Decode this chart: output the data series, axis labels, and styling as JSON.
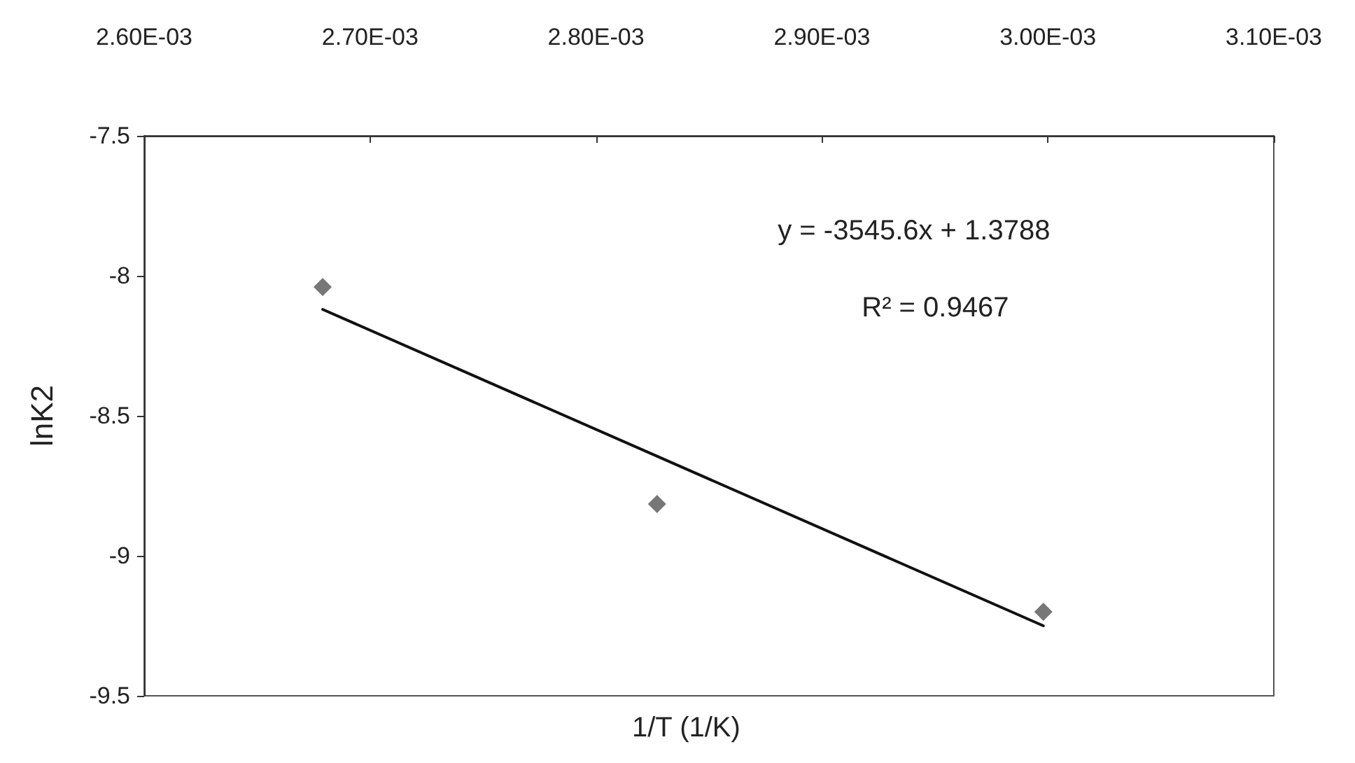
{
  "chart_data": {
    "type": "scatter",
    "xlabel": "1/T (1/K)",
    "ylabel": "lnK2",
    "xlim": [
      0.0026,
      0.0031
    ],
    "xticks": [
      {
        "value": 0.0026,
        "label": "2.60E-03"
      },
      {
        "value": 0.0027,
        "label": "2.70E-03"
      },
      {
        "value": 0.0028,
        "label": "2.80E-03"
      },
      {
        "value": 0.0029,
        "label": "2.90E-03"
      },
      {
        "value": 0.003,
        "label": "3.00E-03"
      },
      {
        "value": 0.0031,
        "label": "3.10E-03"
      }
    ],
    "ylim": [
      -9.5,
      -7.5
    ],
    "yticks": [
      -9.5,
      -9,
      -8.5,
      -8,
      -7.5
    ],
    "x": [
      0.002679,
      0.002827,
      0.002998
    ],
    "series": [
      {
        "color": "#555555",
        "marker": "diamond",
        "values": [
          -8.04,
          -8.815,
          -9.2
        ]
      },
      {
        "type": "line",
        "color": "#111111",
        "marker": "none",
        "line_style": "solid",
        "x": [
          0.002679,
          0.002998
        ],
        "values": [
          -8.12,
          -9.25
        ]
      }
    ],
    "annotations": [
      "y = -3545.6x + 1.3788",
      "R² = 0.9467"
    ],
    "grid": false
  }
}
